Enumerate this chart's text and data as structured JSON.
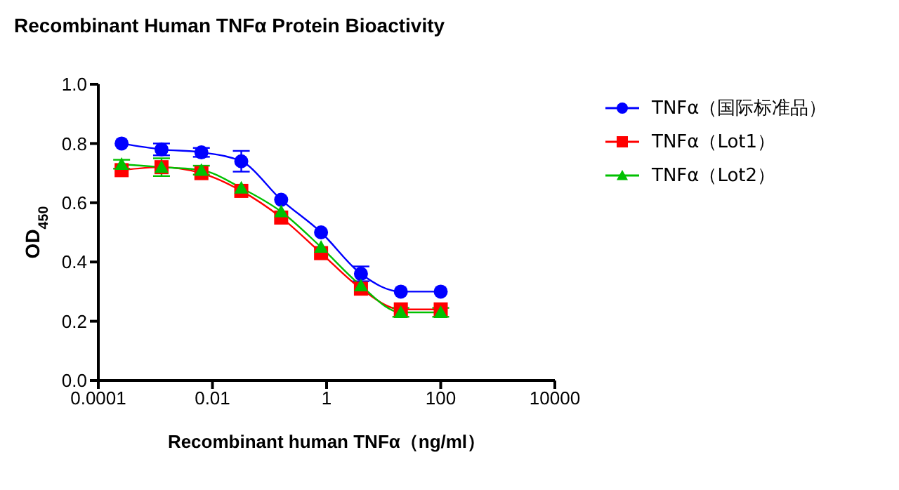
{
  "chart_data": {
    "type": "line",
    "title": "Recombinant Human TNFα Protein Bioactivity",
    "xlabel": "Recombinant human TNFα（ng/ml）",
    "ylabel": "OD$_{450}$",
    "x": [
      0.000256,
      0.00128,
      0.0064,
      0.032,
      0.16,
      0.8,
      4,
      20,
      100
    ],
    "log": "x",
    "xlim": [
      0.0001,
      10000
    ],
    "xticks": [
      0.0001,
      0.01,
      1,
      100,
      10000
    ],
    "ylim": [
      0,
      1
    ],
    "yticks": [
      {
        "value": 0,
        "label": "0.0"
      },
      {
        "value": 0.2,
        "label": "0.2"
      },
      {
        "value": 0.4,
        "label": "0.4"
      },
      {
        "value": 0.6,
        "label": "0.6"
      },
      {
        "value": 0.8,
        "label": "0.8"
      },
      {
        "value": 1.0,
        "label": "1.0"
      }
    ],
    "grid": false,
    "legend": "right",
    "line_style": "solid",
    "series": [
      {
        "name": "TNFα（国际标准品）",
        "color": "#0000ff",
        "marker": "circle",
        "values": [
          0.8,
          0.78,
          0.77,
          0.74,
          0.61,
          0.5,
          0.36,
          0.3,
          0.3
        ],
        "errors": [
          null,
          0.02,
          0.015,
          0.035,
          null,
          null,
          0.025,
          null,
          null
        ]
      },
      {
        "name": "TNFα（Lot1）",
        "color": "#ff0000",
        "marker": "square",
        "values": [
          0.71,
          0.72,
          0.7,
          0.64,
          0.55,
          0.43,
          0.31,
          0.24,
          0.24
        ],
        "errors": [
          null,
          null,
          null,
          null,
          null,
          null,
          null,
          null,
          null
        ]
      },
      {
        "name": "TNFα（Lot2）",
        "color": "#00c000",
        "marker": "triangle",
        "values": [
          0.73,
          0.72,
          0.71,
          0.65,
          0.57,
          0.45,
          0.32,
          0.23,
          0.23
        ],
        "errors": [
          0.015,
          0.03,
          0.015,
          null,
          null,
          null,
          null,
          0.015,
          0.015
        ]
      }
    ]
  }
}
